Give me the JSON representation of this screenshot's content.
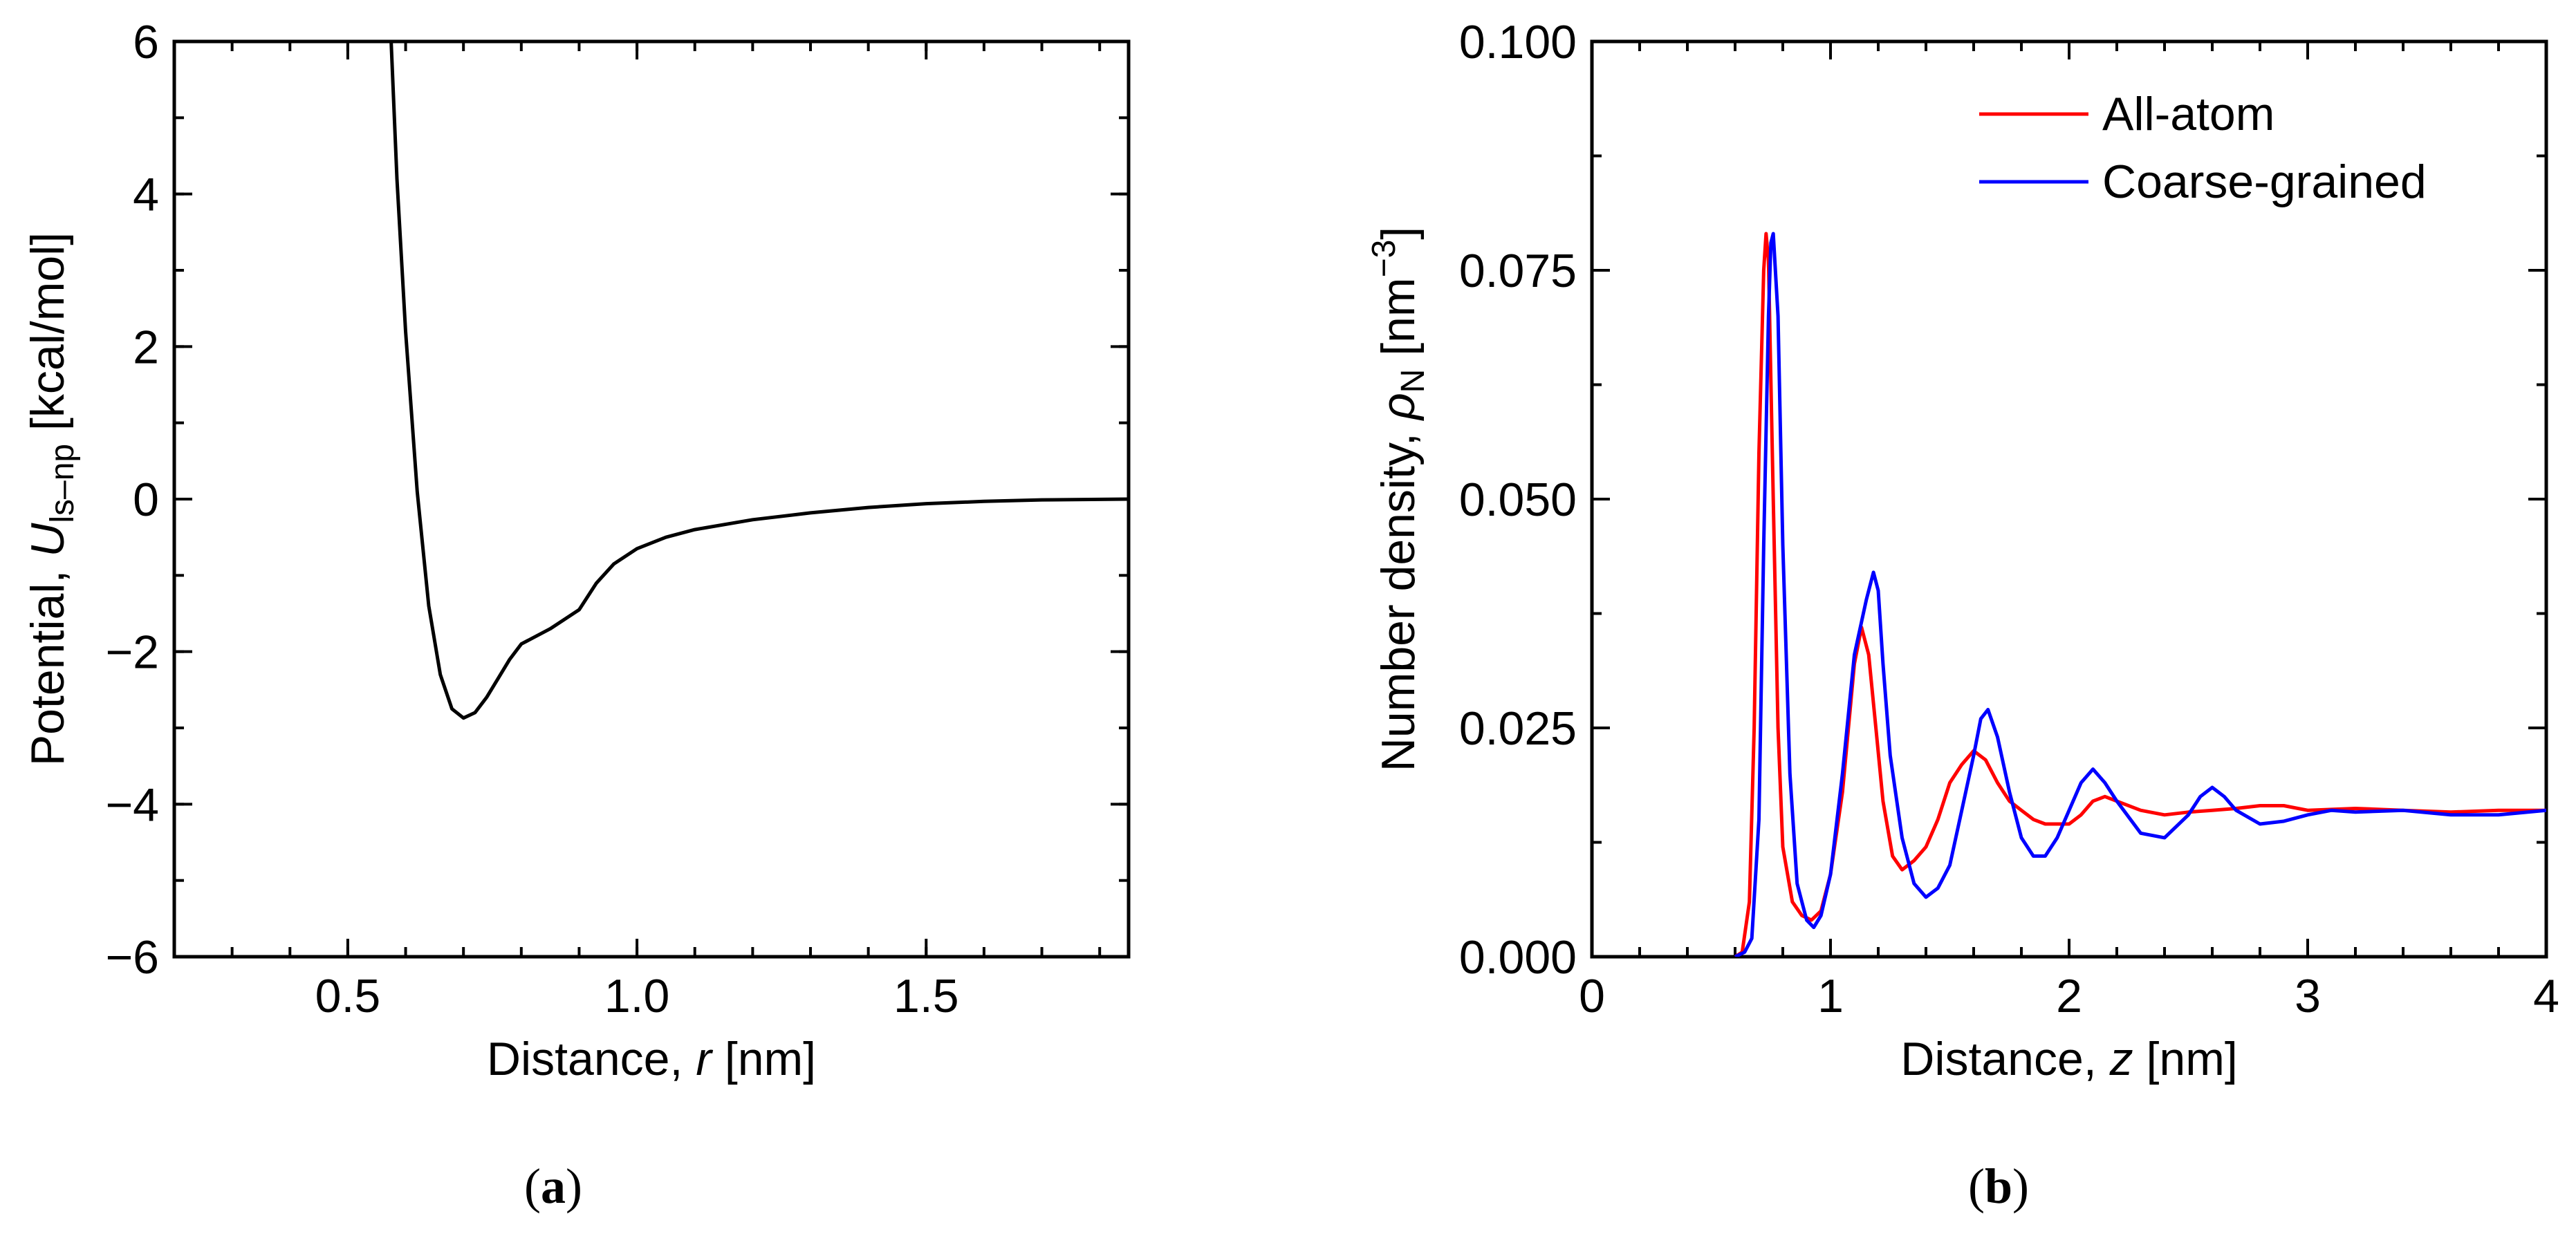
{
  "chart_data": [
    {
      "panel_label": "a",
      "type": "line",
      "xlabel_prefix": "Distance, ",
      "xlabel_var": "r",
      "xlabel_suffix": " [nm]",
      "ylabel_prefix": "Potential, ",
      "ylabel_var": "U",
      "ylabel_sub": "ls–np",
      "ylabel_suffix": " [kcal/mol]",
      "xlim": [
        0.2,
        1.85
      ],
      "ylim": [
        -6,
        6
      ],
      "xticks": [
        0.5,
        1.0,
        1.5
      ],
      "xtick_labels": [
        "0.5",
        "1.0",
        "1.5"
      ],
      "yticks": [
        -6,
        -4,
        -2,
        0,
        2,
        4,
        6
      ],
      "ytick_labels": [
        "−6",
        "−4",
        "−2",
        "0",
        "2",
        "4",
        "6"
      ],
      "series": [
        {
          "name": "Potential",
          "color": "#000000",
          "x": [
            0.575,
            0.585,
            0.6,
            0.62,
            0.64,
            0.66,
            0.68,
            0.7,
            0.72,
            0.74,
            0.76,
            0.78,
            0.8,
            0.85,
            0.9,
            0.93,
            0.96,
            1.0,
            1.05,
            1.1,
            1.2,
            1.3,
            1.4,
            1.5,
            1.6,
            1.7,
            1.85
          ],
          "y": [
            6.0,
            4.2,
            2.2,
            0.1,
            -1.4,
            -2.3,
            -2.75,
            -2.87,
            -2.8,
            -2.6,
            -2.35,
            -2.1,
            -1.9,
            -1.7,
            -1.45,
            -1.1,
            -0.85,
            -0.65,
            -0.5,
            -0.4,
            -0.27,
            -0.18,
            -0.11,
            -0.06,
            -0.03,
            -0.01,
            0.0
          ]
        }
      ]
    },
    {
      "panel_label": "b",
      "type": "line",
      "xlabel_prefix": "Distance, ",
      "xlabel_var": "z",
      "xlabel_suffix": " [nm]",
      "ylabel_prefix": "Number density, ",
      "ylabel_var": "ρ",
      "ylabel_sub": "N",
      "ylabel_suffix": " [nm",
      "ylabel_sup": "−3",
      "ylabel_end": "]",
      "xlim": [
        0,
        4
      ],
      "ylim": [
        0,
        0.1
      ],
      "xticks": [
        0,
        1,
        2,
        3,
        4
      ],
      "xtick_labels": [
        "0",
        "1",
        "2",
        "3",
        "4"
      ],
      "yticks": [
        0,
        0.025,
        0.05,
        0.075,
        0.1
      ],
      "ytick_labels": [
        "0.000",
        "0.025",
        "0.050",
        "0.075",
        "0.100"
      ],
      "legend_position": "top-right",
      "series": [
        {
          "name": "All-atom",
          "color": "#ff0000",
          "x": [
            0.6,
            0.63,
            0.66,
            0.68,
            0.7,
            0.72,
            0.73,
            0.74,
            0.76,
            0.78,
            0.8,
            0.84,
            0.88,
            0.92,
            0.96,
            1.0,
            1.05,
            1.1,
            1.13,
            1.16,
            1.19,
            1.22,
            1.26,
            1.3,
            1.35,
            1.4,
            1.45,
            1.5,
            1.55,
            1.6,
            1.65,
            1.7,
            1.75,
            1.8,
            1.85,
            1.9,
            2.0,
            2.05,
            2.1,
            2.15,
            2.2,
            2.3,
            2.4,
            2.5,
            2.6,
            2.7,
            2.8,
            2.9,
            3.0,
            3.2,
            3.4,
            3.6,
            3.8,
            4.0
          ],
          "y": [
            0.0,
            0.0005,
            0.006,
            0.025,
            0.055,
            0.075,
            0.079,
            0.076,
            0.05,
            0.025,
            0.012,
            0.006,
            0.0045,
            0.004,
            0.005,
            0.009,
            0.018,
            0.032,
            0.036,
            0.033,
            0.025,
            0.017,
            0.011,
            0.0095,
            0.0105,
            0.012,
            0.015,
            0.019,
            0.021,
            0.0225,
            0.0215,
            0.019,
            0.017,
            0.016,
            0.015,
            0.0145,
            0.0145,
            0.0155,
            0.017,
            0.0175,
            0.017,
            0.016,
            0.0155,
            0.0158,
            0.016,
            0.0162,
            0.0165,
            0.0165,
            0.016,
            0.0162,
            0.016,
            0.0158,
            0.016,
            0.016
          ]
        },
        {
          "name": "Coarse-grained",
          "color": "#0000ff",
          "x": [
            0.6,
            0.64,
            0.67,
            0.7,
            0.72,
            0.74,
            0.75,
            0.76,
            0.78,
            0.8,
            0.83,
            0.86,
            0.9,
            0.93,
            0.96,
            1.0,
            1.05,
            1.1,
            1.15,
            1.18,
            1.2,
            1.22,
            1.25,
            1.3,
            1.35,
            1.4,
            1.45,
            1.5,
            1.55,
            1.6,
            1.63,
            1.66,
            1.7,
            1.75,
            1.8,
            1.85,
            1.9,
            1.95,
            2.0,
            2.05,
            2.1,
            2.15,
            2.2,
            2.3,
            2.4,
            2.5,
            2.55,
            2.6,
            2.65,
            2.7,
            2.8,
            2.9,
            3.0,
            3.1,
            3.2,
            3.4,
            3.6,
            3.8,
            4.0
          ],
          "y": [
            0.0,
            0.0005,
            0.002,
            0.015,
            0.045,
            0.07,
            0.078,
            0.079,
            0.07,
            0.045,
            0.02,
            0.008,
            0.004,
            0.0032,
            0.0045,
            0.009,
            0.02,
            0.033,
            0.039,
            0.042,
            0.04,
            0.032,
            0.022,
            0.013,
            0.008,
            0.0065,
            0.0075,
            0.01,
            0.016,
            0.022,
            0.026,
            0.027,
            0.024,
            0.018,
            0.013,
            0.011,
            0.011,
            0.013,
            0.016,
            0.019,
            0.0205,
            0.019,
            0.017,
            0.0135,
            0.013,
            0.0155,
            0.0175,
            0.0185,
            0.0175,
            0.016,
            0.0145,
            0.0148,
            0.0155,
            0.016,
            0.0158,
            0.016,
            0.0155,
            0.0155,
            0.016
          ]
        }
      ]
    }
  ]
}
